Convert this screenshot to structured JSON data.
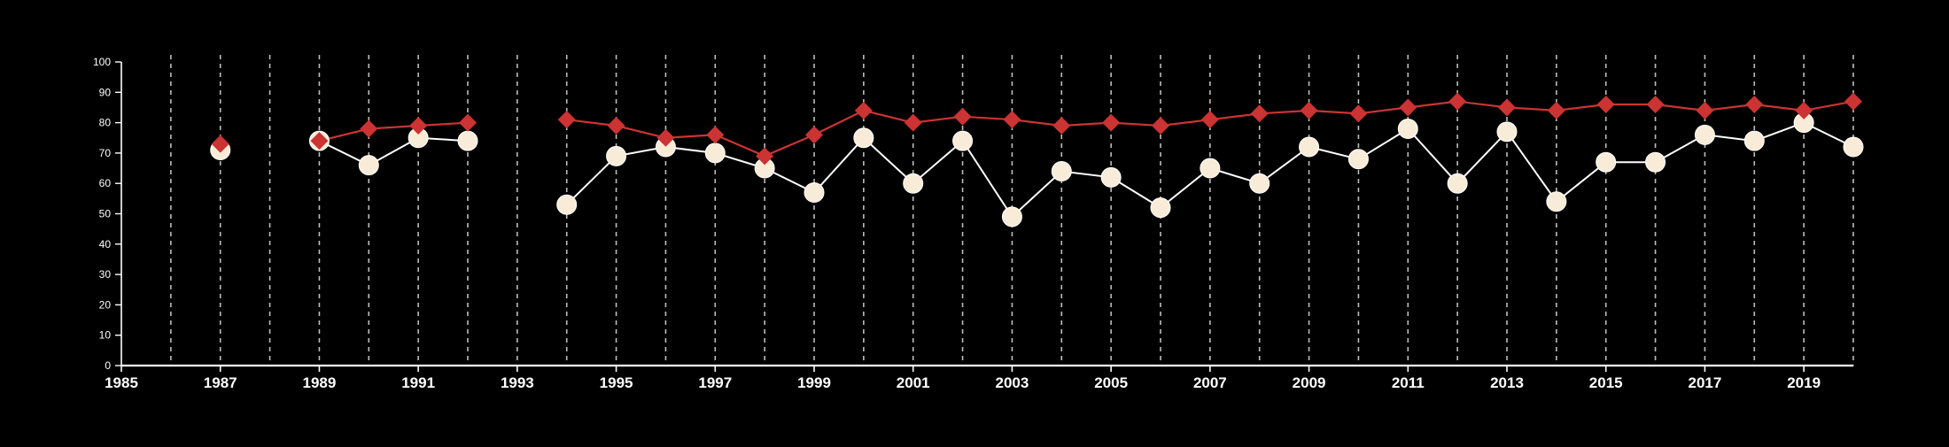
{
  "colors": {
    "background": "#000000",
    "axis": "#ffffff",
    "grid": "#bdbdbd",
    "series_red": "#cc3333",
    "series_cream": "#f8ecd8",
    "cream_stroke": "#ffffff"
  },
  "chart_data": {
    "type": "line",
    "title": "",
    "xlabel": "",
    "ylabel": "",
    "xlim": [
      1985,
      2020
    ],
    "ylim": [
      0,
      100
    ],
    "x_ticks": [
      1985,
      1987,
      1989,
      1991,
      1993,
      1995,
      1997,
      1999,
      2001,
      2003,
      2005,
      2007,
      2009,
      2011,
      2013,
      2015,
      2017,
      2019
    ],
    "y_ticks": [
      0,
      10,
      20,
      30,
      40,
      50,
      60,
      70,
      80,
      90,
      100
    ],
    "vertical_grid_years": [
      1986,
      1987,
      1988,
      1989,
      1990,
      1991,
      1992,
      1993,
      1994,
      1995,
      1996,
      1997,
      1998,
      1999,
      2000,
      2001,
      2002,
      2003,
      2004,
      2005,
      2006,
      2007,
      2008,
      2009,
      2010,
      2011,
      2012,
      2013,
      2014,
      2015,
      2016,
      2017,
      2018,
      2019,
      2020
    ],
    "grid": "vertical dashed",
    "legend": "none",
    "series": [
      {
        "key": "red",
        "marker": "diamond",
        "points": [
          {
            "x": 1987,
            "y": 73
          },
          {
            "x": 1989,
            "y": 74
          },
          {
            "x": 1990,
            "y": 78
          },
          {
            "x": 1991,
            "y": 79
          },
          {
            "x": 1992,
            "y": 80
          },
          {
            "x": 1994,
            "y": 81
          },
          {
            "x": 1995,
            "y": 79
          },
          {
            "x": 1996,
            "y": 75
          },
          {
            "x": 1997,
            "y": 76
          },
          {
            "x": 1998,
            "y": 69
          },
          {
            "x": 1999,
            "y": 76
          },
          {
            "x": 2000,
            "y": 84
          },
          {
            "x": 2001,
            "y": 80
          },
          {
            "x": 2002,
            "y": 82
          },
          {
            "x": 2003,
            "y": 81
          },
          {
            "x": 2004,
            "y": 79
          },
          {
            "x": 2005,
            "y": 80
          },
          {
            "x": 2006,
            "y": 79
          },
          {
            "x": 2007,
            "y": 81
          },
          {
            "x": 2008,
            "y": 83
          },
          {
            "x": 2009,
            "y": 84
          },
          {
            "x": 2010,
            "y": 83
          },
          {
            "x": 2011,
            "y": 85
          },
          {
            "x": 2012,
            "y": 87
          },
          {
            "x": 2013,
            "y": 85
          },
          {
            "x": 2014,
            "y": 84
          },
          {
            "x": 2015,
            "y": 86
          },
          {
            "x": 2016,
            "y": 86
          },
          {
            "x": 2017,
            "y": 84
          },
          {
            "x": 2018,
            "y": 86
          },
          {
            "x": 2019,
            "y": 84
          },
          {
            "x": 2020,
            "y": 87
          }
        ]
      },
      {
        "key": "cream",
        "marker": "circle",
        "points": [
          {
            "x": 1987,
            "y": 71
          },
          {
            "x": 1989,
            "y": 74
          },
          {
            "x": 1990,
            "y": 66
          },
          {
            "x": 1991,
            "y": 75
          },
          {
            "x": 1992,
            "y": 74
          },
          {
            "x": 1994,
            "y": 53
          },
          {
            "x": 1995,
            "y": 69
          },
          {
            "x": 1996,
            "y": 72
          },
          {
            "x": 1997,
            "y": 70
          },
          {
            "x": 1998,
            "y": 65
          },
          {
            "x": 1999,
            "y": 57
          },
          {
            "x": 2000,
            "y": 75
          },
          {
            "x": 2001,
            "y": 60
          },
          {
            "x": 2002,
            "y": 74
          },
          {
            "x": 2003,
            "y": 49
          },
          {
            "x": 2004,
            "y": 64
          },
          {
            "x": 2005,
            "y": 62
          },
          {
            "x": 2006,
            "y": 52
          },
          {
            "x": 2007,
            "y": 65
          },
          {
            "x": 2008,
            "y": 60
          },
          {
            "x": 2009,
            "y": 72
          },
          {
            "x": 2010,
            "y": 68
          },
          {
            "x": 2011,
            "y": 78
          },
          {
            "x": 2012,
            "y": 60
          },
          {
            "x": 2013,
            "y": 77
          },
          {
            "x": 2014,
            "y": 54
          },
          {
            "x": 2015,
            "y": 67
          },
          {
            "x": 2016,
            "y": 67
          },
          {
            "x": 2017,
            "y": 76
          },
          {
            "x": 2018,
            "y": 74
          },
          {
            "x": 2019,
            "y": 80
          },
          {
            "x": 2020,
            "y": 72
          }
        ]
      }
    ]
  }
}
